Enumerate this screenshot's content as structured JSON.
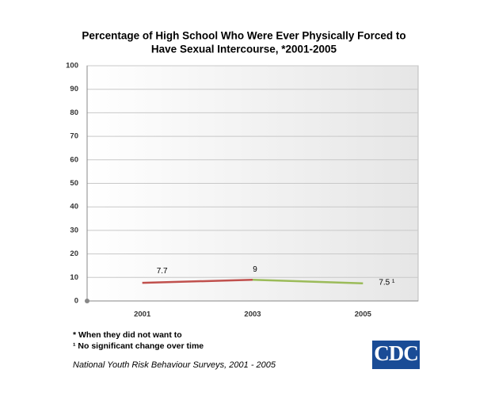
{
  "chart_data": {
    "type": "line",
    "title": [
      "Percentage of High School Who Were Ever Physically Forced to",
      "Have Sexual Intercourse, *2001-2005"
    ],
    "categories": [
      "2001",
      "2003",
      "2005"
    ],
    "values": [
      7.7,
      9,
      7.5
    ],
    "value_labels": [
      "7.7",
      "9",
      "7.5 ¹"
    ],
    "segment_colors": [
      "#c0504d",
      "#9bbb59"
    ],
    "ylim": [
      0,
      100
    ],
    "yticks": [
      0,
      10,
      20,
      30,
      40,
      50,
      60,
      70,
      80,
      90,
      100
    ],
    "grid": true
  },
  "footnotes": [
    "* When they did not want to",
    "¹ No significant change over time"
  ],
  "source": "National Youth Risk Behaviour Surveys, 2001 - 2005",
  "logo": "CDC"
}
